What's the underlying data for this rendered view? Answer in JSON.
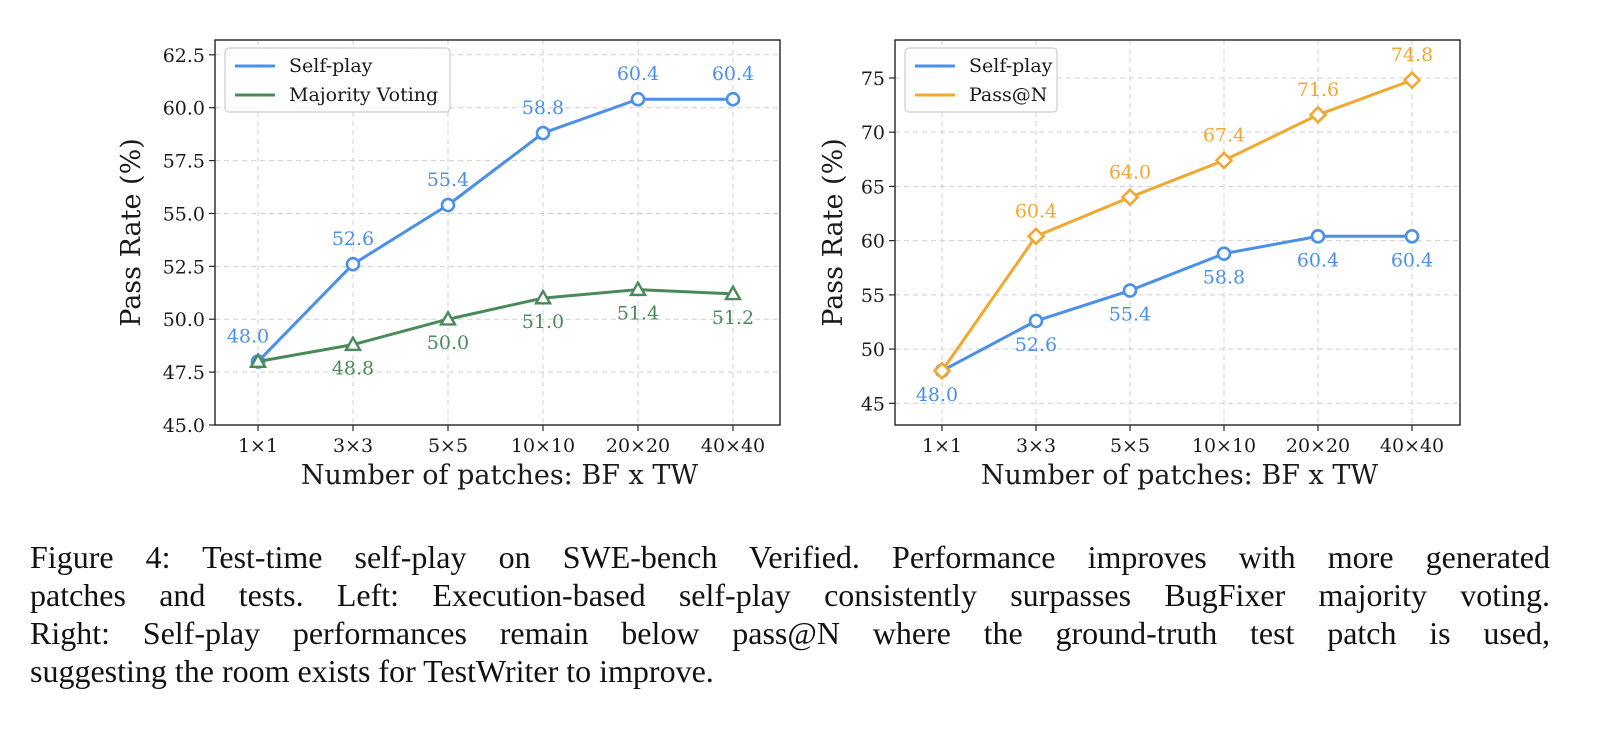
{
  "chart_data": [
    {
      "type": "line",
      "name": "left",
      "categories": [
        "1×1",
        "3×3",
        "5×5",
        "10×10",
        "20×20",
        "40×40"
      ],
      "series": [
        {
          "name": "Self-play",
          "values": [
            48.0,
            52.6,
            55.4,
            58.8,
            60.4,
            60.4
          ],
          "color": "#4a8fe8",
          "marker": "circle",
          "labels": [
            "48.0",
            "52.6",
            "55.4",
            "58.8",
            "60.4",
            "60.4"
          ],
          "label_pos": [
            "above",
            "above",
            "above",
            "above",
            "above",
            "above"
          ]
        },
        {
          "name": "Majority Voting",
          "values": [
            48.0,
            48.8,
            50.0,
            51.0,
            51.4,
            51.2
          ],
          "color": "#4a8a5a",
          "marker": "triangle",
          "labels": [
            "",
            "48.8",
            "50.0",
            "51.0",
            "51.4",
            "51.2"
          ],
          "label_pos": [
            "below",
            "below",
            "below",
            "below",
            "below",
            "below"
          ]
        }
      ],
      "xlabel": "Number of patches: BF x TW",
      "ylabel": "Pass Rate (%)",
      "ylim": [
        45.0,
        63.2
      ],
      "yticks": [
        45.0,
        47.5,
        50.0,
        52.5,
        55.0,
        57.5,
        60.0,
        62.5
      ],
      "ytick_labels": [
        "45.0",
        "47.5",
        "50.0",
        "52.5",
        "55.0",
        "57.5",
        "60.0",
        "62.5"
      ],
      "grid": true,
      "legend": "top-left"
    },
    {
      "type": "line",
      "name": "right",
      "categories": [
        "1×1",
        "3×3",
        "5×5",
        "10×10",
        "20×20",
        "40×40"
      ],
      "series": [
        {
          "name": "Self-play",
          "values": [
            48.0,
            52.6,
            55.4,
            58.8,
            60.4,
            60.4
          ],
          "color": "#4a8fe8",
          "marker": "circle",
          "labels": [
            "48.0",
            "52.6",
            "55.4",
            "58.8",
            "60.4",
            "60.4"
          ],
          "label_pos": [
            "below",
            "below",
            "below",
            "below",
            "below",
            "below"
          ]
        },
        {
          "name": "Pass@N",
          "values": [
            48.0,
            60.4,
            64.0,
            67.4,
            71.6,
            74.8
          ],
          "color": "#f0a830",
          "marker": "diamond",
          "labels": [
            "",
            "60.4",
            "64.0",
            "67.4",
            "71.6",
            "74.8"
          ],
          "label_pos": [
            "above",
            "above",
            "above",
            "above",
            "above",
            "above"
          ]
        }
      ],
      "xlabel": "Number of patches: BF x TW",
      "ylabel": "Pass Rate (%)",
      "ylim": [
        43.0,
        78.5
      ],
      "yticks": [
        45,
        50,
        55,
        60,
        65,
        70,
        75
      ],
      "ytick_labels": [
        "45",
        "50",
        "55",
        "60",
        "65",
        "70",
        "75"
      ],
      "grid": true,
      "legend": "top-left"
    }
  ],
  "caption_lines": [
    "Figure 4: Test-time self-play on SWE-bench Verified. Performance improves with more generated",
    "patches and tests. Left: Execution-based self-play consistently surpasses BugFixer majority voting.",
    "Right:  Self-play performances remain below pass@N where the ground-truth test patch is used,",
    "suggesting the room exists for TestWriter to improve."
  ]
}
